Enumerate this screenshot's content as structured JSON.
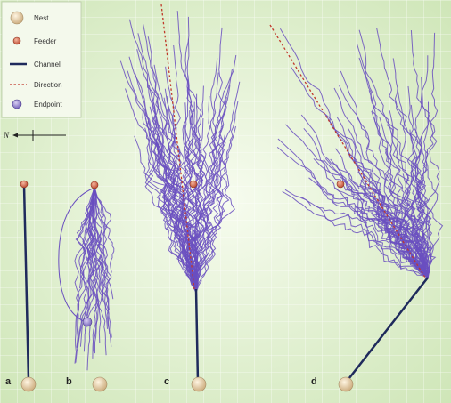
{
  "legend": {
    "items": [
      {
        "label": "Nest",
        "icon": "nest-icon"
      },
      {
        "label": "Feeder",
        "icon": "feeder-icon"
      },
      {
        "label": "Channel",
        "icon": "channel-line-icon"
      },
      {
        "label": "Direction",
        "icon": "direction-line-icon"
      },
      {
        "label": "Endpoint",
        "icon": "endpoint-icon"
      }
    ]
  },
  "compass": {
    "label": "N"
  },
  "panels": [
    {
      "letter": "a"
    },
    {
      "letter": "b"
    },
    {
      "letter": "c"
    },
    {
      "letter": "d"
    }
  ],
  "colors": {
    "background": "#dff0cf",
    "grid": "#ffffff",
    "channel": "#1f2a5c",
    "path": "#6a4fc0",
    "direction": "#c0392b",
    "nest": "#e6cfa6",
    "feeder": "#d65f3b",
    "endpoint": "#8d79c9"
  }
}
